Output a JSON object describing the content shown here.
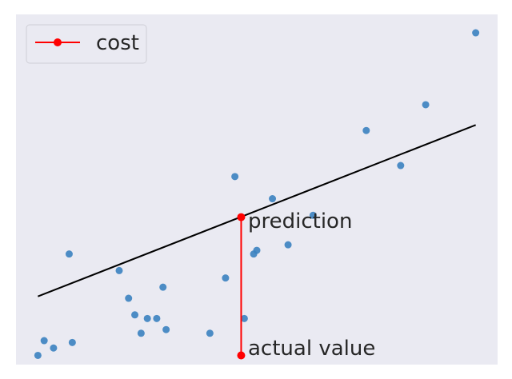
{
  "chart_data": {
    "type": "scatter",
    "background_color": "#eaeaf2",
    "point_color": "#3b82c0",
    "fit_line_color": "#000000",
    "cost_color": "#ff0000",
    "grid": false,
    "legend": {
      "position": "top-left",
      "label": "cost"
    },
    "points": [
      {
        "x": 0.0,
        "y": 0.0
      },
      {
        "x": 0.1,
        "y": 0.55
      },
      {
        "x": 0.63,
        "y": 0.97
      },
      {
        "x": 0.7,
        "y": 0.57
      },
      {
        "x": 0.05,
        "y": 0.04
      },
      {
        "x": 0.88,
        "y": 0.76
      },
      {
        "x": 0.41,
        "y": 0.14
      },
      {
        "x": 0.66,
        "y": 0.2
      },
      {
        "x": 0.35,
        "y": 0.2
      },
      {
        "x": 0.11,
        "y": 0.07
      },
      {
        "x": 1.4,
        "y": 1.75
      },
      {
        "x": 0.6,
        "y": 0.42
      },
      {
        "x": 0.26,
        "y": 0.46
      },
      {
        "x": 0.29,
        "y": 0.31
      },
      {
        "x": 0.33,
        "y": 0.12
      },
      {
        "x": 0.38,
        "y": 0.2
      },
      {
        "x": 0.4,
        "y": 0.37
      },
      {
        "x": 0.8,
        "y": 0.6
      },
      {
        "x": 0.75,
        "y": 0.85
      },
      {
        "x": 1.16,
        "y": 1.03
      },
      {
        "x": 1.24,
        "y": 1.36
      },
      {
        "x": 0.69,
        "y": 0.55
      },
      {
        "x": 0.31,
        "y": 0.22
      },
      {
        "x": 0.55,
        "y": 0.12
      },
      {
        "x": 1.05,
        "y": 1.22
      },
      {
        "x": 0.02,
        "y": 0.08
      }
    ],
    "fit_line": {
      "x": [
        0.0,
        1.4
      ],
      "y": [
        0.32,
        1.25
      ]
    },
    "cost_segment": {
      "x": 0.65,
      "prediction": 0.75,
      "actual": 0.0
    },
    "annotations": {
      "prediction": "prediction",
      "actual": "actual value"
    },
    "xlim": [
      -0.07,
      1.47
    ],
    "ylim": [
      -0.05,
      1.85
    ]
  }
}
